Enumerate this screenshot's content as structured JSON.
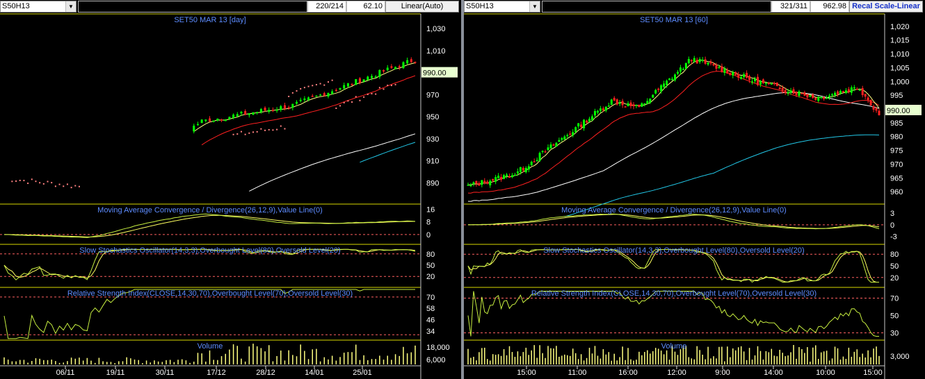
{
  "left": {
    "symbol": "S50H13",
    "counter": "220/214",
    "value": "62.10",
    "scale_button": "Linear(Auto)",
    "price_title": "SET50 MAR 13   [day]",
    "price_label": "990.00",
    "price_ticks": [
      "1,030",
      "1,010",
      "990",
      "970",
      "950",
      "930",
      "910",
      "890"
    ],
    "macd_title": "Moving Average Convergence / Divergence(26,12,9),Value Line(0)",
    "macd_ticks": [
      "16",
      "8",
      "0"
    ],
    "stoch_title": "Slow Stochastics Oscillator(14,3,3),Overbought Level(80),Oversold Level(20)",
    "stoch_ticks": [
      "80",
      "50",
      "20"
    ],
    "rsi_title": "Relative Strength Index(CLOSE,14,30,70),Overbought Level(70),Oversold Level(30)",
    "rsi_ticks": [
      "70",
      "58",
      "46",
      "34"
    ],
    "volume_title": "Volume",
    "volume_ticks": [
      "18,000",
      "6,000"
    ],
    "x_labels": [
      "06/11",
      "19/11",
      "30/11",
      "17/12",
      "28/12",
      "14/01",
      "25/01"
    ]
  },
  "right": {
    "symbol": "S50H13",
    "counter": "321/311",
    "value": "962.98",
    "scale_button": "Recal Scale-Linear",
    "price_title": "SET50 MAR 13   [60]",
    "price_label": "990.00",
    "price_ticks": [
      "1,020",
      "1,015",
      "1,010",
      "1,005",
      "1,000",
      "995",
      "990",
      "985",
      "980",
      "975",
      "970",
      "965",
      "960"
    ],
    "macd_title": "Moving Average Convergence / Divergence(26,12,9),Value Line(0)",
    "macd_ticks": [
      "3",
      "0",
      "-3"
    ],
    "stoch_title": "Slow Stochastics Oscillator(14,3,3),Overbought Level(80),Oversold Level(20)",
    "stoch_ticks": [
      "80",
      "50",
      "20"
    ],
    "rsi_title": "Relative Strength Index(CLOSE,14,30,70),Overbought Level(70),Oversold Level(30)",
    "rsi_ticks": [
      "70",
      "50",
      "30"
    ],
    "volume_title": "Volume",
    "volume_ticks": [
      "3,000"
    ],
    "x_labels": [
      "15:00",
      "11:00",
      "16:00",
      "12:00",
      "9:00",
      "14:00",
      "10:00",
      "15:00"
    ]
  },
  "colors": {
    "up": "#00ff00",
    "down": "#ff2020",
    "grid": "#d8d800",
    "title": "#5d8cff",
    "ma_fast": "#ffff80",
    "ma_mid": "#ff2020",
    "ma_slow": "#ffffff",
    "ma_long": "#22c8e8",
    "osc": "#c8f040",
    "sig": "#ffff60"
  }
}
